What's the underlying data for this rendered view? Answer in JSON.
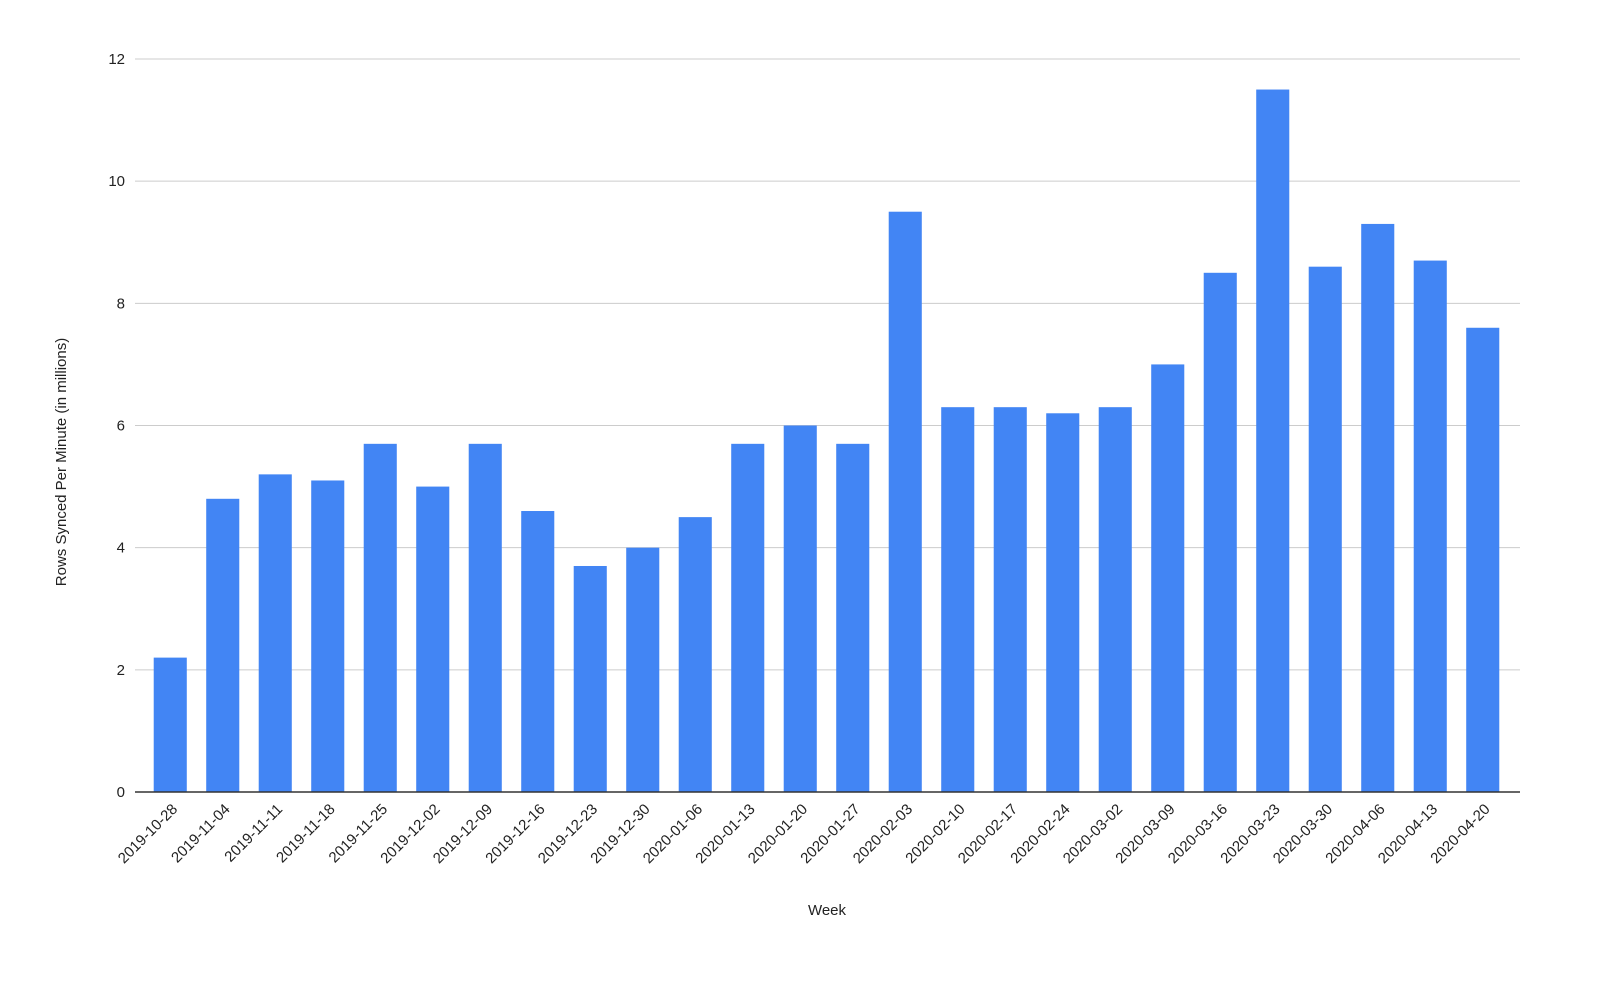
{
  "chart_data": {
    "type": "bar",
    "x_label": "Week",
    "y_label": "Rows Synced Per Minute (in millions)",
    "categories": [
      "2019-10-28",
      "2019-11-04",
      "2019-11-11",
      "2019-11-18",
      "2019-11-25",
      "2019-12-02",
      "2019-12-09",
      "2019-12-16",
      "2019-12-23",
      "2019-12-30",
      "2020-01-06",
      "2020-01-13",
      "2020-01-20",
      "2020-01-27",
      "2020-02-03",
      "2020-02-10",
      "2020-02-17",
      "2020-02-24",
      "2020-03-02",
      "2020-03-09",
      "2020-03-16",
      "2020-03-23",
      "2020-03-30",
      "2020-04-06",
      "2020-04-13",
      "2020-04-20"
    ],
    "values": [
      2.2,
      4.8,
      5.2,
      5.1,
      5.7,
      5.0,
      5.7,
      4.6,
      3.7,
      4.0,
      4.5,
      5.7,
      6.0,
      5.7,
      9.5,
      6.3,
      6.3,
      6.2,
      6.3,
      7.0,
      8.5,
      11.5,
      8.6,
      9.3,
      8.7,
      7.6
    ],
    "color": "#4285f4",
    "ylim": [
      0,
      12
    ],
    "yticks": [
      0,
      2,
      4,
      6,
      8,
      10,
      12
    ],
    "grid": true
  }
}
